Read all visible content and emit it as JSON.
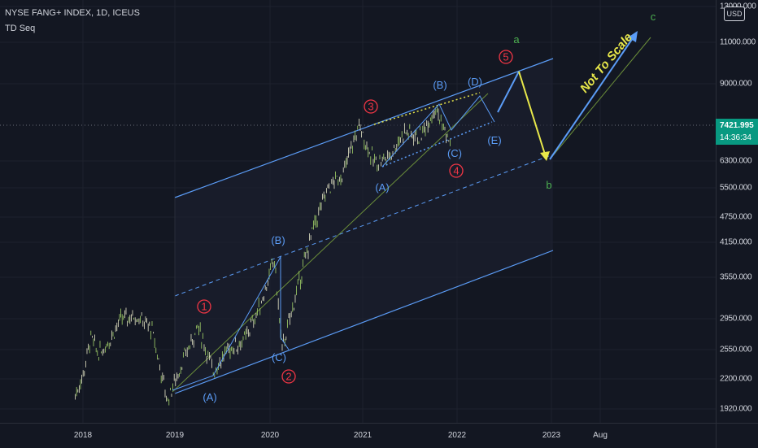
{
  "header": {
    "title": "NYSE FANG+ INDEX, 1D, ICEUS",
    "indicator": "TD Seq"
  },
  "currency_button": "USD",
  "last_price": {
    "value": "7421.995",
    "countdown": "14:36:34",
    "color": "#089981"
  },
  "price_axis": {
    "labels": [
      "13000.000",
      "11000.000",
      "9000.000",
      "6300.000",
      "5500.000",
      "4750.000",
      "4150.000",
      "3550.000",
      "2950.000",
      "2550.000",
      "2200.000",
      "1920.000"
    ]
  },
  "time_axis": {
    "labels": [
      "2018",
      "2019",
      "2020",
      "2021",
      "2022",
      "2023",
      "Aug"
    ]
  },
  "annotations": {
    "primary_waves": [
      "1",
      "2",
      "3",
      "4",
      "5"
    ],
    "corrective_waves_blue": [
      "(A)",
      "(B)",
      "(C)",
      "(A)",
      "(B)",
      "(C)",
      "(D)",
      "(E)"
    ],
    "green_waves": [
      "a",
      "b",
      "c"
    ],
    "note": "Not To Scale"
  },
  "colors": {
    "background": "#131722",
    "channel": "#5b9cf6",
    "wave_red": "#f23645",
    "wave_blue": "#5b9cf6",
    "wave_green": "#4caf50",
    "projection_yellow": "#e8e84a",
    "candle_up": "#a5d66a",
    "candle_down": "#e8e8c8"
  },
  "chart_data": {
    "type": "line",
    "title": "NYSE FANG+ INDEX, 1D, ICEUS",
    "x_range": [
      "2017-11",
      "2023-10"
    ],
    "ylim": [
      1800,
      13000
    ],
    "y_scale": "log",
    "series": [
      {
        "name": "NYSE FANG+ INDEX",
        "x": [
          "2017-12",
          "2018-01",
          "2018-02",
          "2018-03",
          "2018-04",
          "2018-06",
          "2018-08",
          "2018-10",
          "2018-12",
          "2019-02",
          "2019-04",
          "2019-06",
          "2019-08",
          "2019-10",
          "2019-12",
          "2020-02",
          "2020-03",
          "2020-05",
          "2020-07",
          "2020-09",
          "2020-11",
          "2021-01",
          "2021-03",
          "2021-05",
          "2021-07",
          "2021-09",
          "2021-11",
          "2022-01"
        ],
        "values": [
          2050,
          2250,
          2700,
          2500,
          2600,
          2950,
          3000,
          2800,
          2000,
          2400,
          2850,
          2300,
          2550,
          2650,
          3100,
          3900,
          2550,
          3400,
          4500,
          5500,
          5900,
          7400,
          6200,
          6400,
          7200,
          7000,
          8100,
          6700
        ]
      }
    ]
  }
}
